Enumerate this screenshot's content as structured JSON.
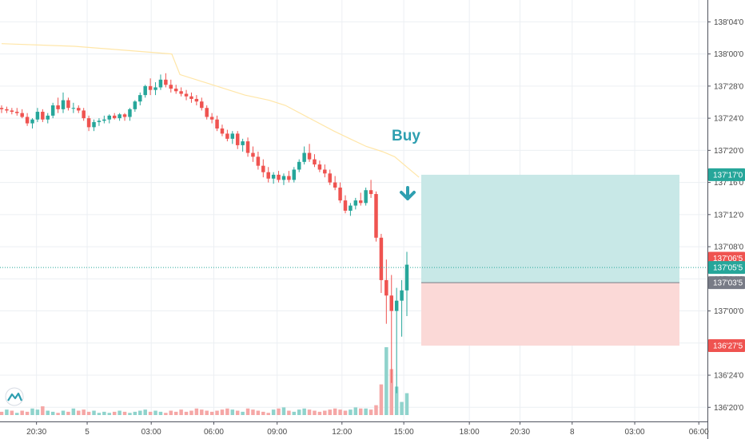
{
  "chart_data": {
    "type": "candlestick",
    "y_ticks": [
      "136'20'0",
      "136'24'0",
      "136'28'0",
      "137'00'0",
      "137'04'0",
      "137'08'0",
      "137'12'0",
      "137'16'0",
      "137'20'0",
      "137'24'0",
      "137'28'0",
      "138'00'0",
      "138'04'0"
    ],
    "y_tick_values": [
      136.625,
      136.75,
      136.875,
      137.0,
      137.125,
      137.25,
      137.375,
      137.5,
      137.625,
      137.75,
      137.875,
      138.0,
      138.125
    ],
    "ylim": [
      136.57,
      138.21
    ],
    "x_ticks": [
      "20:30",
      "5",
      "03:00",
      "06:00",
      "09:00",
      "12:00",
      "15:00",
      "18:00",
      "20:30",
      "8",
      "03:00",
      "06:00"
    ],
    "x_tick_pos": [
      0.049,
      0.117,
      0.203,
      0.287,
      0.372,
      0.459,
      0.542,
      0.63,
      0.698,
      0.768,
      0.852,
      0.938
    ],
    "grid": true,
    "candles": [
      [
        137.79,
        137.8,
        137.77,
        137.785
      ],
      [
        137.785,
        137.795,
        137.77,
        137.78
      ],
      [
        137.78,
        137.79,
        137.765,
        137.775
      ],
      [
        137.775,
        137.79,
        137.76,
        137.77
      ],
      [
        137.77,
        137.785,
        137.75,
        137.755
      ],
      [
        137.755,
        137.77,
        137.72,
        137.73
      ],
      [
        137.73,
        137.75,
        137.71,
        137.745
      ],
      [
        137.745,
        137.79,
        137.735,
        137.775
      ],
      [
        137.775,
        137.785,
        137.735,
        137.745
      ],
      [
        137.745,
        137.77,
        137.73,
        137.76
      ],
      [
        137.76,
        137.81,
        137.75,
        137.8
      ],
      [
        137.8,
        137.83,
        137.77,
        137.785
      ],
      [
        137.785,
        137.85,
        137.77,
        137.82
      ],
      [
        137.82,
        137.83,
        137.78,
        137.79
      ],
      [
        137.79,
        137.81,
        137.77,
        137.79
      ],
      [
        137.79,
        137.8,
        137.77,
        137.78
      ],
      [
        137.78,
        137.79,
        137.74,
        137.75
      ],
      [
        137.75,
        137.76,
        137.7,
        137.715
      ],
      [
        137.715,
        137.745,
        137.7,
        137.735
      ],
      [
        137.735,
        137.75,
        137.72,
        137.74
      ],
      [
        137.74,
        137.76,
        137.73,
        137.745
      ],
      [
        137.745,
        137.765,
        137.73,
        137.76
      ],
      [
        137.76,
        137.77,
        137.745,
        137.75
      ],
      [
        137.75,
        137.77,
        137.74,
        137.765
      ],
      [
        137.765,
        137.77,
        137.74,
        137.755
      ],
      [
        137.755,
        137.79,
        137.74,
        137.785
      ],
      [
        137.785,
        137.82,
        137.775,
        137.815
      ],
      [
        137.815,
        137.85,
        137.8,
        137.84
      ],
      [
        137.84,
        137.88,
        137.83,
        137.875
      ],
      [
        137.875,
        137.905,
        137.84,
        137.86
      ],
      [
        137.86,
        137.89,
        137.84,
        137.87
      ],
      [
        137.87,
        137.92,
        137.86,
        137.9
      ],
      [
        137.9,
        137.925,
        137.87,
        137.88
      ],
      [
        137.88,
        137.9,
        137.85,
        137.865
      ],
      [
        137.865,
        137.88,
        137.845,
        137.855
      ],
      [
        137.855,
        137.87,
        137.835,
        137.845
      ],
      [
        137.845,
        137.86,
        137.82,
        137.835
      ],
      [
        137.835,
        137.85,
        137.81,
        137.825
      ],
      [
        137.825,
        137.84,
        137.8,
        137.815
      ],
      [
        137.815,
        137.83,
        137.78,
        137.79
      ],
      [
        137.79,
        137.8,
        137.745,
        137.755
      ],
      [
        137.755,
        137.77,
        137.73,
        137.745
      ],
      [
        137.745,
        137.76,
        137.7,
        137.71
      ],
      [
        137.71,
        137.725,
        137.68,
        137.69
      ],
      [
        137.69,
        137.705,
        137.66,
        137.67
      ],
      [
        137.67,
        137.7,
        137.65,
        137.69
      ],
      [
        137.69,
        137.7,
        137.63,
        137.645
      ],
      [
        137.645,
        137.67,
        137.62,
        137.66
      ],
      [
        137.66,
        137.675,
        137.6,
        137.615
      ],
      [
        137.615,
        137.64,
        137.58,
        137.6
      ],
      [
        137.6,
        137.62,
        137.55,
        137.565
      ],
      [
        137.565,
        137.59,
        137.52,
        137.54
      ],
      [
        137.54,
        137.56,
        137.5,
        137.515
      ],
      [
        137.515,
        137.54,
        137.495,
        137.53
      ],
      [
        137.53,
        137.545,
        137.5,
        137.51
      ],
      [
        137.51,
        137.535,
        137.49,
        137.525
      ],
      [
        137.525,
        137.545,
        137.5,
        137.51
      ],
      [
        137.51,
        137.56,
        137.5,
        137.55
      ],
      [
        137.55,
        137.59,
        137.54,
        137.58
      ],
      [
        137.58,
        137.64,
        137.57,
        137.615
      ],
      [
        137.615,
        137.65,
        137.58,
        137.59
      ],
      [
        137.59,
        137.61,
        137.56,
        137.57
      ],
      [
        137.57,
        137.585,
        137.54,
        137.55
      ],
      [
        137.55,
        137.57,
        137.52,
        137.535
      ],
      [
        137.535,
        137.55,
        137.49,
        137.5
      ],
      [
        137.5,
        137.525,
        137.47,
        137.48
      ],
      [
        137.48,
        137.5,
        137.42,
        137.43
      ],
      [
        137.43,
        137.45,
        137.38,
        137.39
      ],
      [
        137.39,
        137.42,
        137.37,
        137.41
      ],
      [
        137.41,
        137.44,
        137.395,
        137.43
      ],
      [
        137.43,
        137.46,
        137.41,
        137.42
      ],
      [
        137.42,
        137.48,
        137.41,
        137.47
      ],
      [
        137.47,
        137.51,
        137.44,
        137.455
      ],
      [
        137.455,
        137.465,
        137.27,
        137.285
      ],
      [
        137.285,
        137.3,
        137.07,
        137.12
      ],
      [
        137.12,
        137.2,
        136.95,
        137.06
      ],
      [
        137.06,
        137.14,
        136.72,
        137.0
      ],
      [
        137.0,
        137.09,
        136.68,
        137.04
      ],
      [
        137.04,
        137.12,
        136.9,
        137.08
      ],
      [
        137.08,
        137.23,
        136.98,
        137.18
      ]
    ],
    "volumes": [
      3,
      5,
      4,
      2,
      4,
      3,
      6,
      5,
      8,
      4,
      3,
      2,
      4,
      3,
      6,
      4,
      5,
      3,
      4,
      2,
      3,
      2,
      3,
      4,
      3,
      2,
      3,
      4,
      5,
      3,
      4,
      3,
      2,
      4,
      3,
      5,
      3,
      4,
      6,
      5,
      4,
      3,
      4,
      5,
      6,
      5,
      4,
      3,
      6,
      5,
      4,
      3,
      2,
      5,
      6,
      7,
      4,
      3,
      5,
      6,
      5,
      4,
      3,
      4,
      5,
      6,
      5,
      4,
      5,
      7,
      6,
      6,
      5,
      9,
      28,
      62,
      42,
      26,
      12,
      20
    ],
    "volume_up": [
      0,
      1,
      0,
      1,
      0,
      0,
      1,
      1,
      0,
      1,
      1,
      0,
      1,
      0,
      1,
      0,
      0,
      0,
      1,
      1,
      1,
      1,
      0,
      1,
      0,
      1,
      1,
      1,
      1,
      0,
      1,
      1,
      0,
      0,
      0,
      0,
      0,
      0,
      0,
      0,
      0,
      0,
      0,
      0,
      0,
      1,
      0,
      1,
      0,
      0,
      0,
      0,
      0,
      1,
      0,
      1,
      0,
      1,
      1,
      1,
      0,
      0,
      0,
      0,
      0,
      0,
      0,
      0,
      1,
      1,
      0,
      1,
      0,
      0,
      0,
      1,
      0,
      1,
      1,
      1
    ],
    "ma_line": [
      [
        0.0,
        138.04
      ],
      [
        0.18,
        138.03
      ],
      [
        0.42,
        138.0
      ],
      [
        0.44,
        137.92
      ],
      [
        0.52,
        137.88
      ],
      [
        0.6,
        137.84
      ],
      [
        0.66,
        137.82
      ],
      [
        0.7,
        137.8
      ],
      [
        0.76,
        137.75
      ],
      [
        0.82,
        137.7
      ],
      [
        0.86,
        137.67
      ],
      [
        0.9,
        137.64
      ],
      [
        0.94,
        137.62
      ],
      [
        0.97,
        137.6
      ],
      [
        1.0,
        137.56
      ],
      [
        1.03,
        137.52
      ]
    ],
    "last_price_line": 137.169,
    "trade": {
      "signal": "Buy",
      "target": 137.53,
      "entry": 137.11,
      "stop": 136.865
    },
    "price_badges": [
      {
        "label": "137'17'0",
        "value": 137.53,
        "color": "#26a69a"
      },
      {
        "label": "137'06'5",
        "value": 137.205,
        "color": "#ef5350"
      },
      {
        "label": "137'05'5",
        "value": 137.169,
        "color": "#26a69a"
      },
      {
        "label": "137'03'5",
        "value": 137.11,
        "color": "#787b86"
      },
      {
        "label": "136'27'5",
        "value": 136.865,
        "color": "#ef5350"
      }
    ]
  },
  "colors": {
    "up": "#26a69a",
    "down": "#ef5350",
    "up_volume": "#8fd3cc",
    "down_volume": "#f5a7a6",
    "ma": "#ffe6a8",
    "target_zone": "#c8e8e7",
    "stop_zone": "#fbd9d7",
    "grid": "#eceff3",
    "arrow": "#2e9fb0"
  },
  "icons": {
    "logo": "tradingview-logo-icon",
    "signal_arrow": "down-arrow-icon"
  }
}
